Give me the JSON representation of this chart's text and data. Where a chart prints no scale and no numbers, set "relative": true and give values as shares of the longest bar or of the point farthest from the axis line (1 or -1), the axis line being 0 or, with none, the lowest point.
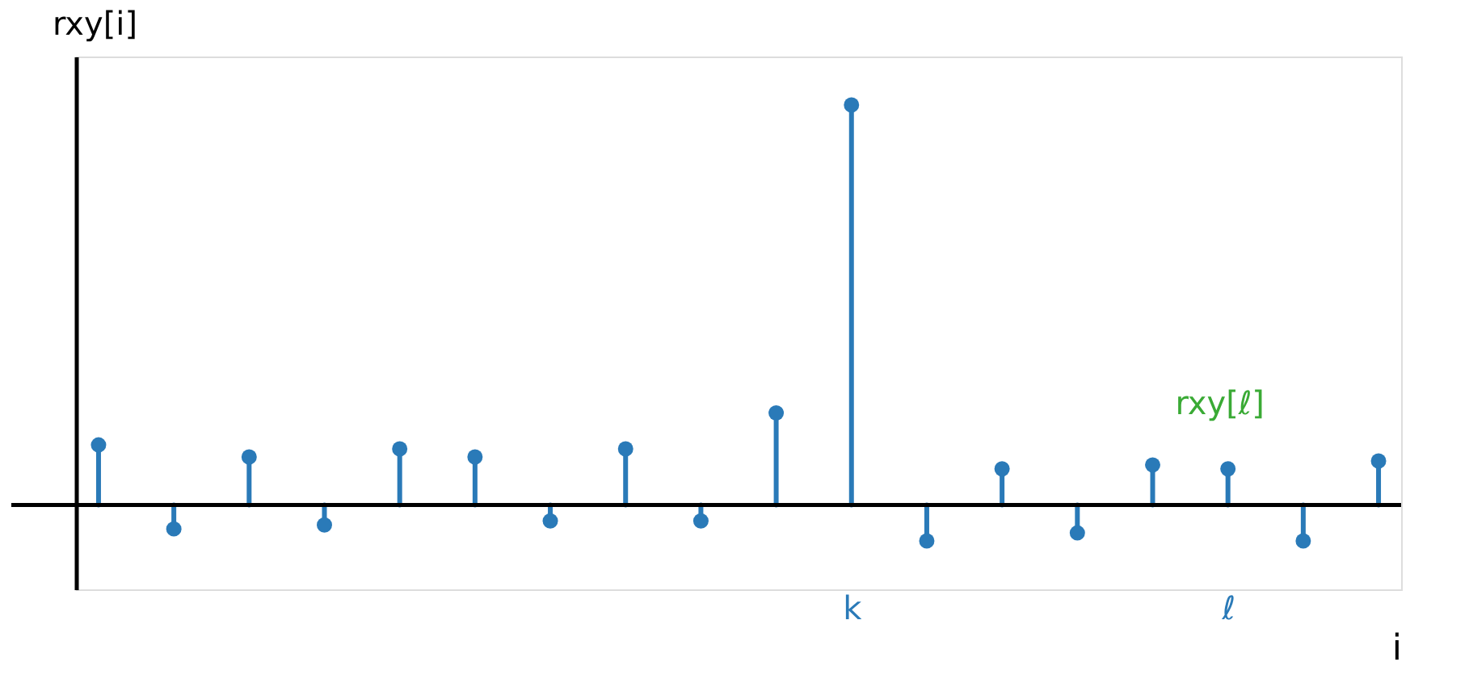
{
  "chart_data": {
    "type": "lollipop",
    "relative": true,
    "xlabel": "i",
    "ylabel": "rxy[i]",
    "tick_labels": "x",
    "grid": false,
    "marker": "circle",
    "categories": [
      null,
      null,
      null,
      null,
      null,
      null,
      null,
      null,
      null,
      null,
      "k",
      null,
      null,
      null,
      null,
      "ℓ",
      null,
      null
    ],
    "series": [
      {
        "color": "#2a7ab8",
        "values": [
          0.15,
          -0.06,
          0.12,
          -0.05,
          0.14,
          0.12,
          -0.04,
          0.14,
          -0.04,
          0.23,
          1,
          -0.09,
          0.09,
          -0.07,
          0.1,
          0.09,
          -0.09,
          0.11
        ]
      }
    ],
    "annotations": [
      {
        "text": "rxy[ℓ]",
        "x": "ℓ",
        "y": 0.09
      }
    ]
  }
}
